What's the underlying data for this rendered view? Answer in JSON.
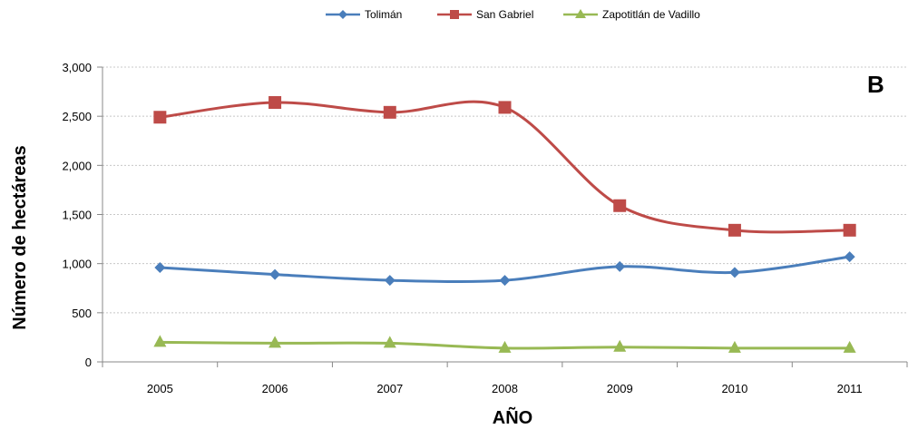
{
  "chart_data": {
    "type": "line",
    "panel_label": "B",
    "xlabel": "AÑO",
    "ylabel": "Número de hectáreas",
    "categories": [
      "2005",
      "2006",
      "2007",
      "2008",
      "2009",
      "2010",
      "2011"
    ],
    "ylim": [
      0,
      3000
    ],
    "y_ticks": [
      0,
      500,
      1000,
      1500,
      2000,
      2500,
      3000
    ],
    "y_tick_labels": [
      "0",
      "500",
      "1,000",
      "1,500",
      "2,000",
      "2,500",
      "3,000"
    ],
    "grid": true,
    "legend_position": "top",
    "series": [
      {
        "name": "Tolimán",
        "color": "#4a7ebb",
        "marker": "diamond",
        "values": [
          960,
          890,
          830,
          830,
          970,
          910,
          1070
        ]
      },
      {
        "name": "San Gabriel",
        "color": "#be4b48",
        "marker": "square",
        "values": [
          2490,
          2640,
          2540,
          2590,
          1590,
          1340,
          1340
        ]
      },
      {
        "name": "Zapotitlán de Vadillo",
        "color": "#98b954",
        "marker": "triangle",
        "values": [
          200,
          190,
          190,
          140,
          150,
          140,
          140
        ]
      }
    ]
  }
}
